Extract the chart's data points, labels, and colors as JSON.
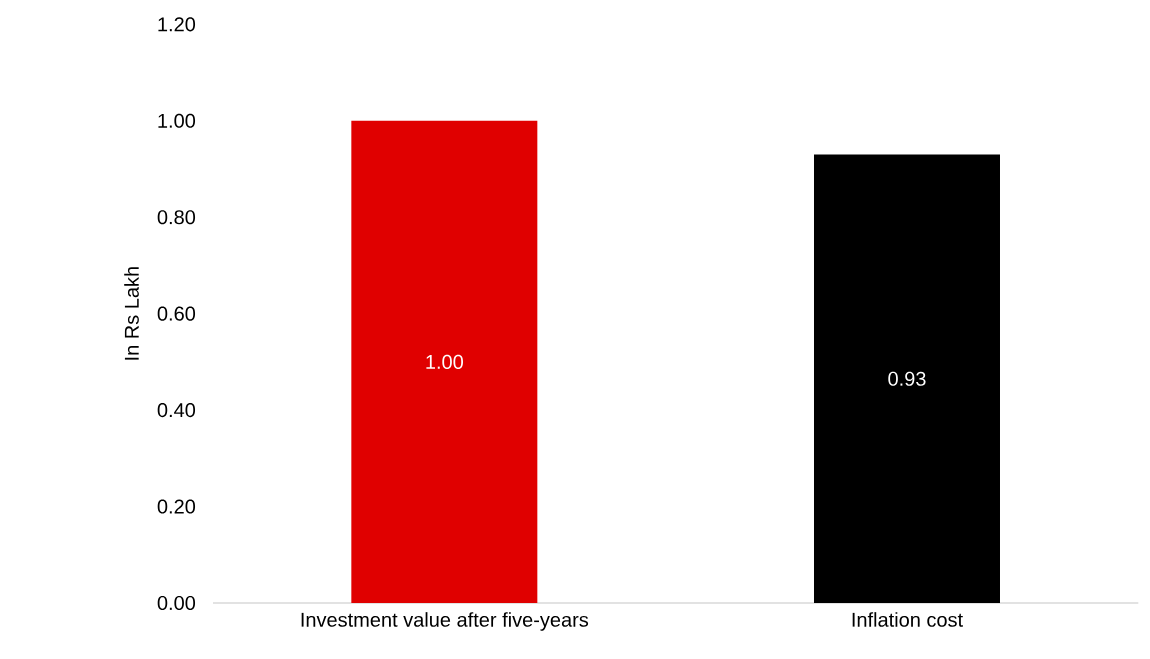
{
  "chart_data": {
    "type": "bar",
    "ylabel": "In Rs Lakh",
    "categories": [
      "Investment value after five-years",
      "Inflation cost"
    ],
    "values": [
      1.0,
      0.93
    ],
    "colors": [
      "#e00000",
      "#000000"
    ],
    "value_labels": [
      "1.00",
      "0.93"
    ],
    "ylim": [
      0,
      1.2
    ],
    "yticks": [
      {
        "value": 0,
        "label": "0.00"
      },
      {
        "value": 0.2,
        "label": "0.20"
      },
      {
        "value": 0.4,
        "label": "0.40"
      },
      {
        "value": 0.6,
        "label": "0.60"
      },
      {
        "value": 0.8,
        "label": "0.80"
      },
      {
        "value": 1.0,
        "label": "1.00"
      },
      {
        "value": 1.2,
        "label": "1.20"
      }
    ]
  }
}
